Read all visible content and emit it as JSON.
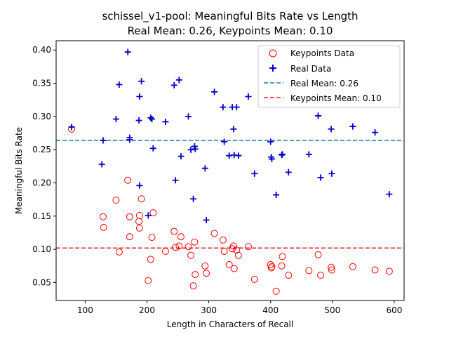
{
  "chart_data": {
    "type": "scatter",
    "title_line1": "schissel_v1-pool: Meaningful Bits Rate vs Length",
    "title_line2": "Real Mean: 0.26, Keypoints Mean: 0.10",
    "xlabel": "Length in Characters of Recall",
    "ylabel": "Meaningful Bits Rate",
    "xlim": [
      53,
      616
    ],
    "ylim": [
      0.023,
      0.414
    ],
    "xticks": [
      100,
      200,
      300,
      400,
      500,
      600
    ],
    "yticks": [
      0.05,
      0.1,
      0.15,
      0.2,
      0.25,
      0.3,
      0.35,
      0.4
    ],
    "ytick_labels": [
      "0.05",
      "0.10",
      "0.15",
      "0.20",
      "0.25",
      "0.30",
      "0.35",
      "0.40"
    ],
    "grid": false,
    "legend_position": "top-right",
    "series": [
      {
        "name": "Keypoints Data",
        "marker": "open-circle",
        "color": "#ff0000",
        "points": [
          [
            78,
            0.281
          ],
          [
            129,
            0.149
          ],
          [
            130,
            0.133
          ],
          [
            150,
            0.174
          ],
          [
            155,
            0.096
          ],
          [
            169,
            0.204
          ],
          [
            172,
            0.149
          ],
          [
            172,
            0.119
          ],
          [
            187,
            0.142
          ],
          [
            188,
            0.151
          ],
          [
            188,
            0.132
          ],
          [
            191,
            0.176
          ],
          [
            202,
            0.053
          ],
          [
            206,
            0.085
          ],
          [
            208,
            0.118
          ],
          [
            210,
            0.155
          ],
          [
            230,
            0.097
          ],
          [
            244,
            0.127
          ],
          [
            246,
            0.103
          ],
          [
            252,
            0.105
          ],
          [
            255,
            0.119
          ],
          [
            267,
            0.104
          ],
          [
            271,
            0.091
          ],
          [
            275,
            0.045
          ],
          [
            277,
            0.111
          ],
          [
            278,
            0.062
          ],
          [
            294,
            0.075
          ],
          [
            296,
            0.064
          ],
          [
            309,
            0.124
          ],
          [
            323,
            0.114
          ],
          [
            325,
            0.097
          ],
          [
            333,
            0.077
          ],
          [
            338,
            0.101
          ],
          [
            340,
            0.105
          ],
          [
            341,
            0.071
          ],
          [
            345,
            0.099
          ],
          [
            348,
            0.091
          ],
          [
            364,
            0.104
          ],
          [
            374,
            0.055
          ],
          [
            400,
            0.077
          ],
          [
            401,
            0.072
          ],
          [
            402,
            0.074
          ],
          [
            409,
            0.037
          ],
          [
            418,
            0.075
          ],
          [
            419,
            0.089
          ],
          [
            429,
            0.061
          ],
          [
            462,
            0.068
          ],
          [
            477,
            0.092
          ],
          [
            481,
            0.061
          ],
          [
            498,
            0.073
          ],
          [
            499,
            0.069
          ],
          [
            533,
            0.074
          ],
          [
            569,
            0.069
          ],
          [
            592,
            0.067
          ]
        ]
      },
      {
        "name": "Real Data",
        "marker": "plus",
        "color": "#0000cc",
        "points": [
          [
            78,
            0.284
          ],
          [
            127,
            0.228
          ],
          [
            129,
            0.264
          ],
          [
            150,
            0.296
          ],
          [
            155,
            0.348
          ],
          [
            169,
            0.397
          ],
          [
            172,
            0.268
          ],
          [
            172,
            0.265
          ],
          [
            187,
            0.294
          ],
          [
            188,
            0.33
          ],
          [
            188,
            0.196
          ],
          [
            191,
            0.353
          ],
          [
            202,
            0.151
          ],
          [
            206,
            0.298
          ],
          [
            208,
            0.296
          ],
          [
            210,
            0.252
          ],
          [
            230,
            0.292
          ],
          [
            244,
            0.347
          ],
          [
            246,
            0.204
          ],
          [
            252,
            0.355
          ],
          [
            255,
            0.24
          ],
          [
            267,
            0.3
          ],
          [
            271,
            0.25
          ],
          [
            275,
            0.176
          ],
          [
            277,
            0.255
          ],
          [
            278,
            0.251
          ],
          [
            294,
            0.222
          ],
          [
            296,
            0.144
          ],
          [
            309,
            0.337
          ],
          [
            323,
            0.314
          ],
          [
            325,
            0.262
          ],
          [
            333,
            0.241
          ],
          [
            338,
            0.314
          ],
          [
            340,
            0.281
          ],
          [
            341,
            0.242
          ],
          [
            345,
            0.314
          ],
          [
            348,
            0.241
          ],
          [
            364,
            0.33
          ],
          [
            374,
            0.214
          ],
          [
            400,
            0.262
          ],
          [
            401,
            0.239
          ],
          [
            402,
            0.236
          ],
          [
            409,
            0.182
          ],
          [
            418,
            0.242
          ],
          [
            419,
            0.243
          ],
          [
            429,
            0.216
          ],
          [
            462,
            0.243
          ],
          [
            477,
            0.301
          ],
          [
            481,
            0.208
          ],
          [
            498,
            0.281
          ],
          [
            499,
            0.214
          ],
          [
            533,
            0.285
          ],
          [
            569,
            0.276
          ],
          [
            592,
            0.183
          ]
        ]
      }
    ],
    "reference_lines": [
      {
        "name": "Real Mean: 0.26",
        "y": 0.264,
        "style": "dashed",
        "color": "#1f77b4"
      },
      {
        "name": "Keypoints Mean: 0.10",
        "y": 0.102,
        "style": "dashed",
        "color": "#d62728"
      }
    ]
  }
}
